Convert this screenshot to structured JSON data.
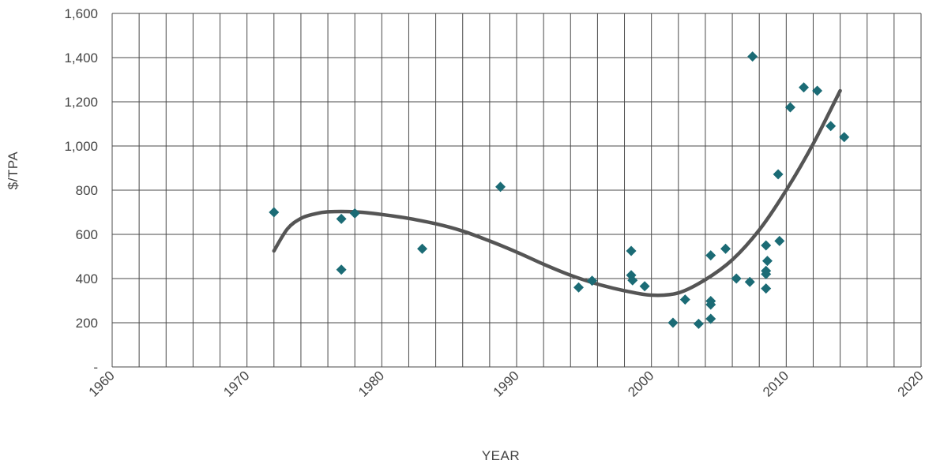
{
  "chart_data": {
    "type": "scatter",
    "title": "",
    "xlabel": "YEAR",
    "ylabel": "$/TPA",
    "xlim": [
      1960,
      2020
    ],
    "ylim": [
      0,
      1600
    ],
    "x_ticks": [
      "1960",
      "1970",
      "1980",
      "1990",
      "2000",
      "2010",
      "2020"
    ],
    "y_ticks": [
      "-",
      "200",
      "400",
      "600",
      "800",
      "1,000",
      "1,200",
      "1,400",
      "1,600"
    ],
    "grid": true,
    "colors": {
      "points": "#1b6b75",
      "trend": "#555555",
      "grid": "#4a4a4a"
    },
    "series": [
      {
        "type": "scatter",
        "points": [
          [
            1972.0,
            700
          ],
          [
            1977.0,
            670
          ],
          [
            1977.0,
            440
          ],
          [
            1978.0,
            695
          ],
          [
            1983.0,
            535
          ],
          [
            1988.8,
            815
          ],
          [
            1994.6,
            360
          ],
          [
            1995.6,
            390
          ],
          [
            1998.5,
            525
          ],
          [
            1998.5,
            415
          ],
          [
            1998.6,
            392
          ],
          [
            1999.5,
            365
          ],
          [
            2001.6,
            200
          ],
          [
            2002.5,
            305
          ],
          [
            2003.5,
            195
          ],
          [
            2004.4,
            505
          ],
          [
            2004.4,
            298
          ],
          [
            2004.4,
            282
          ],
          [
            2004.4,
            218
          ],
          [
            2005.5,
            535
          ],
          [
            2006.3,
            400
          ],
          [
            2007.3,
            385
          ],
          [
            2007.5,
            1405
          ],
          [
            2008.5,
            550
          ],
          [
            2008.5,
            435
          ],
          [
            2008.5,
            420
          ],
          [
            2008.6,
            480
          ],
          [
            2008.5,
            355
          ],
          [
            2009.4,
            872
          ],
          [
            2009.5,
            570
          ],
          [
            2010.3,
            1175
          ],
          [
            2011.3,
            1265
          ],
          [
            2012.3,
            1250
          ],
          [
            2013.3,
            1090
          ],
          [
            2014.3,
            1040
          ]
        ]
      },
      {
        "type": "trendline",
        "points": [
          [
            1972,
            525
          ],
          [
            1973,
            625
          ],
          [
            1974,
            672
          ],
          [
            1975,
            692
          ],
          [
            1976,
            702
          ],
          [
            1978,
            702
          ],
          [
            1980,
            690
          ],
          [
            1982,
            672
          ],
          [
            1984,
            648
          ],
          [
            1986,
            615
          ],
          [
            1988,
            570
          ],
          [
            1990,
            520
          ],
          [
            1992,
            465
          ],
          [
            1994,
            415
          ],
          [
            1996,
            375
          ],
          [
            1998,
            345
          ],
          [
            2000,
            325
          ],
          [
            2002,
            335
          ],
          [
            2004,
            395
          ],
          [
            2006,
            485
          ],
          [
            2008,
            620
          ],
          [
            2010,
            800
          ],
          [
            2012,
            1010
          ],
          [
            2014,
            1250
          ]
        ]
      }
    ]
  }
}
